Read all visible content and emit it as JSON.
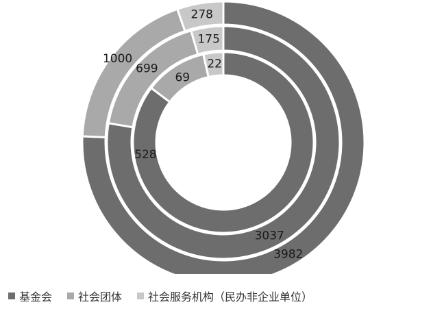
{
  "chart_data": {
    "type": "donut",
    "rings": [
      {
        "values": [
          528,
          69,
          22
        ],
        "labels": [
          "528",
          "69",
          "22"
        ]
      },
      {
        "values": [
          3037,
          699,
          175
        ],
        "labels": [
          "3037",
          "699",
          "175"
        ]
      },
      {
        "values": [
          3982,
          1000,
          278
        ],
        "labels": [
          "3982",
          "1000",
          "278"
        ]
      }
    ],
    "series": [
      {
        "name": "基金会",
        "color": "#6d6d6d"
      },
      {
        "name": "社会团体",
        "color": "#a9a9a9"
      },
      {
        "name": "社会服务机构（民办非企业单位）",
        "color": "#c8c8c8"
      }
    ],
    "legend_position": "bottom"
  }
}
